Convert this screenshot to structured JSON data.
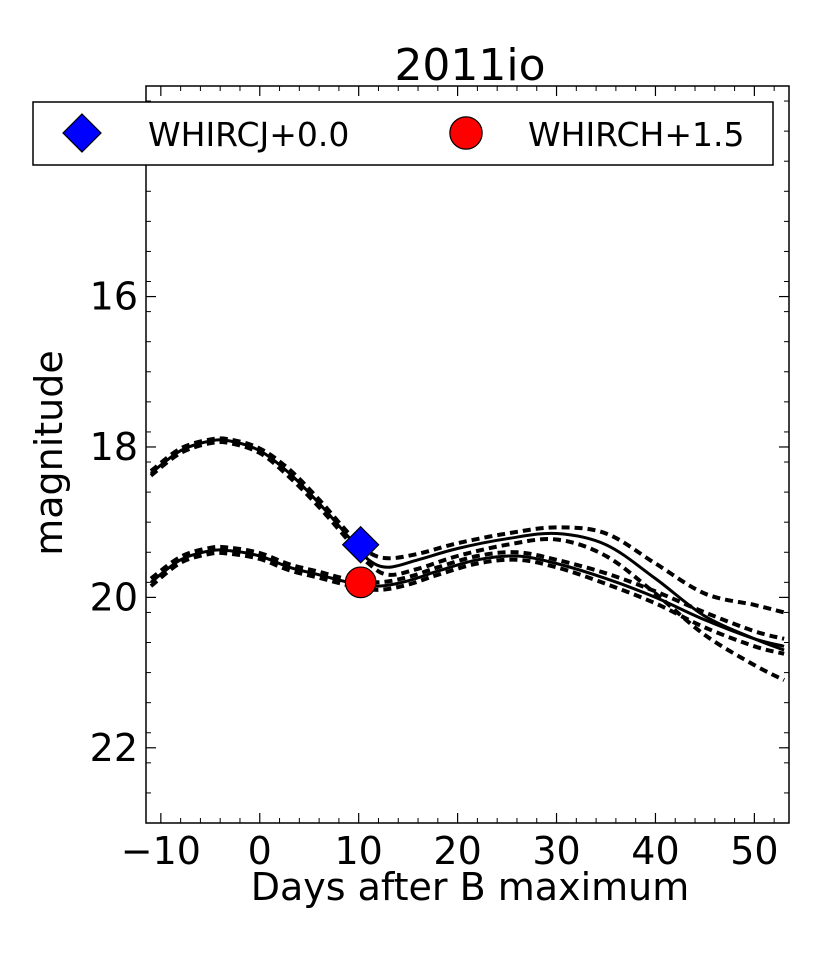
{
  "chart_data": {
    "type": "line",
    "title": "2011io",
    "xlabel": "Days after B maximum",
    "ylabel": "magnitude",
    "xlim": [
      -11.5,
      53.5
    ],
    "ylim": [
      23.0,
      13.2
    ],
    "y_inverted": true,
    "x_ticks": [
      -10,
      0,
      10,
      20,
      30,
      40,
      50
    ],
    "x_tick_labels": [
      "−10",
      "0",
      "10",
      "20",
      "30",
      "40",
      "50"
    ],
    "y_ticks": [
      16,
      18,
      20,
      22
    ],
    "y_tick_labels": [
      "16",
      "18",
      "20",
      "22"
    ],
    "legend": {
      "placement": "top",
      "entries": [
        {
          "label": "WHIRCJ+0.0",
          "marker": "diamond",
          "color": "#0000ff"
        },
        {
          "label": "WHIRCH+1.5",
          "marker": "circle",
          "color": "#ff0000"
        }
      ]
    },
    "series": [
      {
        "name": "WHIRCJ+0.0",
        "marker": "diamond",
        "color": "#0000ff",
        "points": [
          {
            "x": 10.2,
            "y": 19.3
          }
        ],
        "model_x": [
          -11,
          -8,
          -5,
          -3,
          0,
          3,
          6,
          9,
          11,
          13,
          16,
          20,
          25,
          30,
          35,
          40,
          45,
          50,
          53
        ],
        "model_y": [
          18.35,
          18.05,
          17.92,
          17.92,
          18.05,
          18.35,
          18.75,
          19.2,
          19.5,
          19.6,
          19.5,
          19.35,
          19.22,
          19.15,
          19.3,
          19.75,
          20.25,
          20.55,
          20.7
        ],
        "band_upper": [
          18.32,
          18.02,
          17.9,
          17.9,
          18.02,
          18.3,
          18.7,
          19.15,
          19.4,
          19.48,
          19.42,
          19.28,
          19.15,
          19.07,
          19.15,
          19.55,
          19.95,
          20.1,
          20.2
        ],
        "band_lower": [
          18.38,
          18.08,
          17.95,
          17.95,
          18.08,
          18.4,
          18.8,
          19.25,
          19.55,
          19.7,
          19.62,
          19.45,
          19.3,
          19.23,
          19.45,
          19.95,
          20.5,
          20.9,
          21.1
        ]
      },
      {
        "name": "WHIRCH+1.5",
        "marker": "circle",
        "color": "#ff0000",
        "points": [
          {
            "x": 10.2,
            "y": 19.8
          }
        ],
        "model_x": [
          -11,
          -8,
          -5,
          -3,
          0,
          3,
          6,
          9,
          12,
          15,
          18,
          22,
          26,
          30,
          35,
          40,
          45,
          50,
          53
        ],
        "model_y": [
          19.8,
          19.5,
          19.38,
          19.38,
          19.45,
          19.6,
          19.7,
          19.8,
          19.85,
          19.78,
          19.65,
          19.5,
          19.45,
          19.55,
          19.75,
          20.0,
          20.3,
          20.55,
          20.65
        ],
        "band_upper": [
          19.75,
          19.46,
          19.34,
          19.34,
          19.41,
          19.56,
          19.66,
          19.76,
          19.8,
          19.73,
          19.6,
          19.45,
          19.4,
          19.5,
          19.68,
          19.92,
          20.2,
          20.45,
          20.55
        ],
        "band_lower": [
          19.85,
          19.54,
          19.42,
          19.42,
          19.49,
          19.64,
          19.74,
          19.84,
          19.9,
          19.83,
          19.7,
          19.55,
          19.5,
          19.6,
          19.82,
          20.08,
          20.4,
          20.65,
          20.75
        ]
      }
    ]
  }
}
